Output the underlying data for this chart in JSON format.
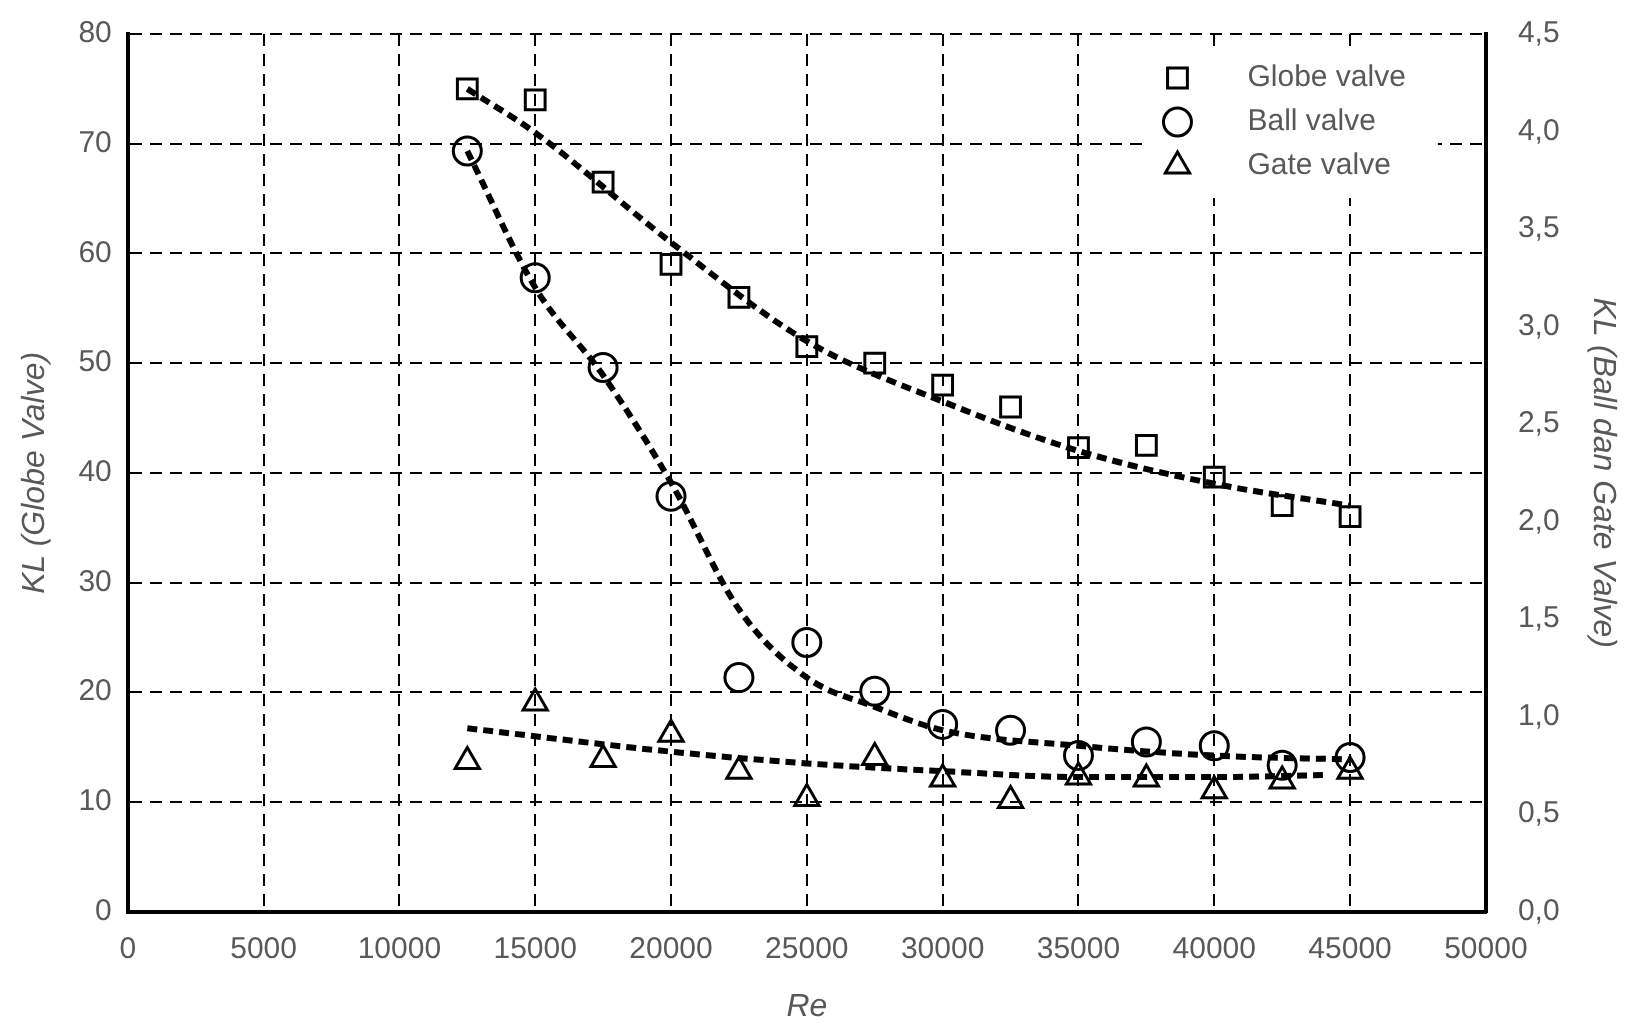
{
  "chart_data": {
    "type": "scatter",
    "xlabel": "Re",
    "ylabel": "KL (Globe Valve)",
    "y2label": "KL (Ball dan Gate Valve)",
    "x": [
      12500,
      15000,
      17500,
      20000,
      22500,
      25000,
      27500,
      30000,
      32500,
      35000,
      37500,
      40000,
      42500,
      45000
    ],
    "series": [
      {
        "name": "Globe valve",
        "color": "#000000",
        "marker": "square",
        "values": [
          75,
          74,
          66.5,
          59,
          56,
          51.5,
          50,
          48,
          46,
          42.3,
          42.5,
          39.6,
          37,
          36
        ]
      },
      {
        "name": "Ball valve",
        "color": "#000000",
        "marker": "circle",
        "axis": "y2",
        "values": [
          3.9,
          3.25,
          2.79,
          2.13,
          1.2,
          1.38,
          1.13,
          0.96,
          0.93,
          0.8,
          0.87,
          0.85,
          0.75,
          0.79
        ]
      },
      {
        "name": "Gate valve",
        "color": "#000000",
        "marker": "triangle",
        "axis": "y2",
        "values": [
          0.77,
          1.07,
          0.78,
          0.91,
          0.72,
          0.58,
          0.79,
          0.68,
          0.57,
          0.69,
          0.68,
          0.62,
          0.67,
          0.72
        ]
      },
      {
        "type": "line",
        "color": "#000000",
        "marker": "none",
        "line_style": "dashed",
        "x": [
          12500,
          15000,
          20000,
          25000,
          30000,
          35000,
          40000,
          45000
        ],
        "values": [
          75,
          71,
          61,
          52,
          46.5,
          42,
          39,
          37
        ]
      },
      {
        "type": "line",
        "color": "#000000",
        "marker": "none",
        "line_style": "dashed",
        "axis": "y2",
        "x": [
          12500,
          15000,
          17500,
          20000,
          22500,
          25000,
          27500,
          30000,
          35000,
          40000,
          45000
        ],
        "values": [
          3.9,
          3.2,
          2.75,
          2.2,
          1.55,
          1.2,
          1.05,
          0.93,
          0.85,
          0.8,
          0.78
        ]
      },
      {
        "type": "line",
        "color": "#000000",
        "marker": "none",
        "line_style": "dashed",
        "axis": "y2",
        "x": [
          12500,
          20000,
          25000,
          30000,
          35000,
          40000,
          44000
        ],
        "values": [
          0.94,
          0.82,
          0.76,
          0.72,
          0.69,
          0.69,
          0.7
        ]
      }
    ],
    "xlim": [
      0,
      50000
    ],
    "xticks": [
      0,
      5000,
      10000,
      15000,
      20000,
      25000,
      30000,
      35000,
      40000,
      45000,
      50000
    ],
    "ylim": [
      0,
      80
    ],
    "yticks": [
      0,
      10,
      20,
      30,
      40,
      50,
      60,
      70,
      80
    ],
    "y2lim": [
      0,
      4.5
    ],
    "y2ticks": [
      {
        "value": 0,
        "label": "0,0"
      },
      {
        "value": 0.5,
        "label": "0,5"
      },
      {
        "value": 1,
        "label": "1,0"
      },
      {
        "value": 1.5,
        "label": "1,5"
      },
      {
        "value": 2,
        "label": "2,0"
      },
      {
        "value": 2.5,
        "label": "2,5"
      },
      {
        "value": 3,
        "label": "3,0"
      },
      {
        "value": 3.5,
        "label": "3,5"
      },
      {
        "value": 4,
        "label": "4,0"
      },
      {
        "value": 4.5,
        "label": "4,5"
      }
    ],
    "grid": true,
    "legend": "top right"
  }
}
